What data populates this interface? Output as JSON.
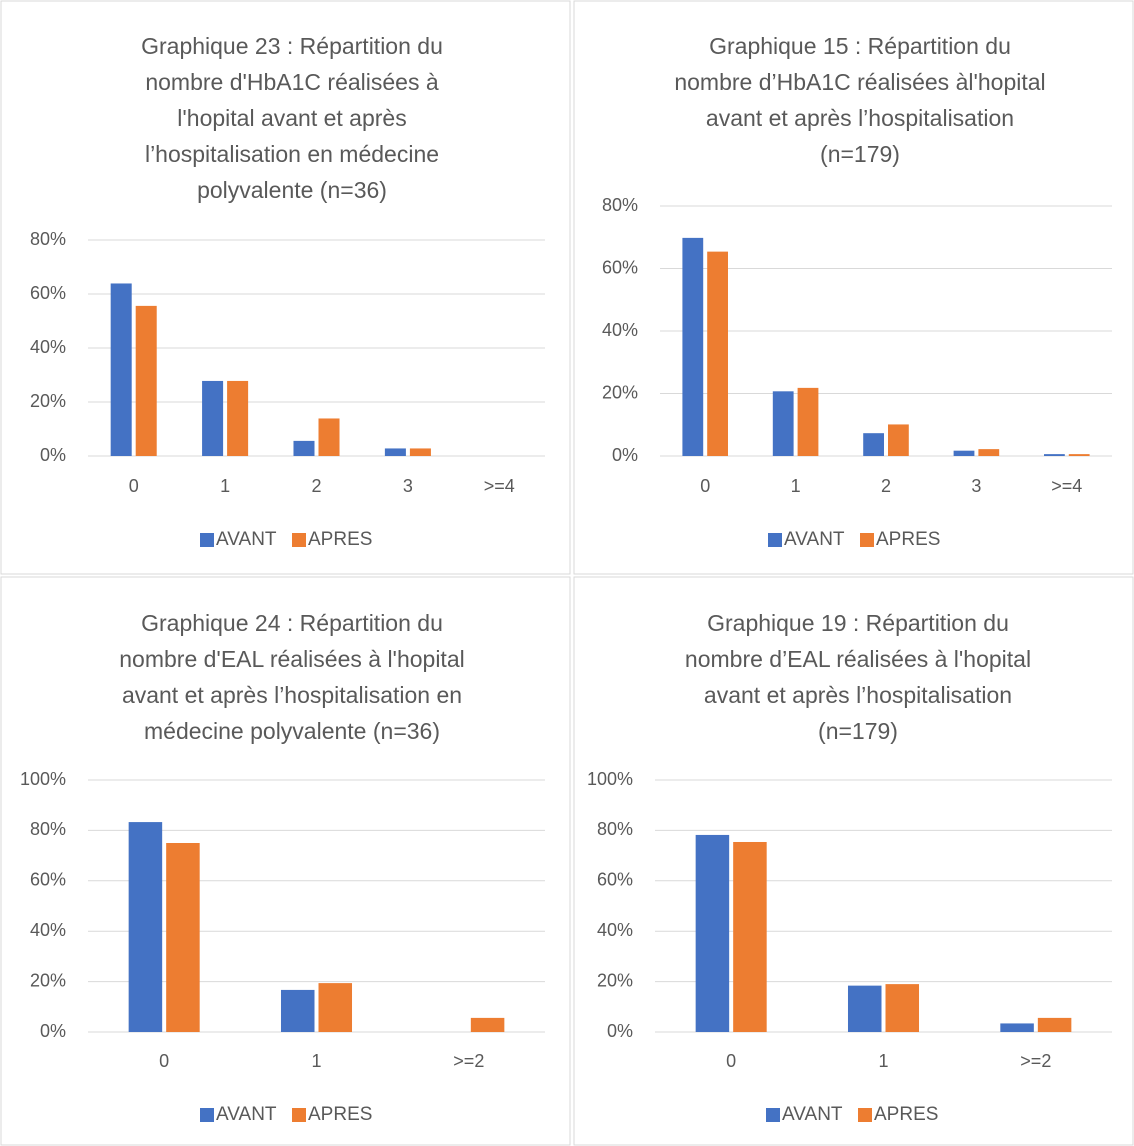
{
  "chart_data": [
    {
      "type": "bar",
      "title": [
        "Graphique 23 : Répartition du",
        "nombre d'HbA1C réalisées à",
        "l'hopital avant et après",
        "l’hospitalisation en médecine",
        "polyvalente (n=36)"
      ],
      "categories": [
        "0",
        "1",
        "2",
        "3",
        ">=4"
      ],
      "series": [
        {
          "name": "AVANT",
          "color": "#4472c4",
          "values": [
            63.9,
            27.8,
            5.6,
            2.8,
            0
          ]
        },
        {
          "name": "APRES",
          "color": "#ed7d31",
          "values": [
            55.6,
            27.8,
            13.9,
            2.8,
            0
          ]
        }
      ],
      "ylim": [
        0,
        80
      ],
      "yticks": [
        {
          "value": 0,
          "label": "0%"
        },
        {
          "value": 20,
          "label": "20%"
        },
        {
          "value": 40,
          "label": "40%"
        },
        {
          "value": 60,
          "label": "60%"
        },
        {
          "value": 80,
          "label": "80%"
        }
      ],
      "grid": true,
      "legend": "bottom"
    },
    {
      "type": "bar",
      "title": [
        "Graphique 15 : Répartition du",
        "nombre d’HbA1C réalisées àl'hopital",
        "avant et après l’hospitalisation",
        "(n=179)"
      ],
      "categories": [
        "0",
        "1",
        "2",
        "3",
        ">=4"
      ],
      "series": [
        {
          "name": "AVANT",
          "color": "#4472c4",
          "values": [
            69.8,
            20.7,
            7.3,
            1.7,
            0.6
          ]
        },
        {
          "name": "APRES",
          "color": "#ed7d31",
          "values": [
            65.4,
            21.8,
            10.1,
            2.2,
            0.6
          ]
        }
      ],
      "ylim": [
        0,
        80
      ],
      "yticks": [
        {
          "value": 0,
          "label": "0%"
        },
        {
          "value": 20,
          "label": "20%"
        },
        {
          "value": 40,
          "label": "40%"
        },
        {
          "value": 60,
          "label": "60%"
        },
        {
          "value": 80,
          "label": "80%"
        }
      ],
      "grid": true,
      "legend": "bottom"
    },
    {
      "type": "bar",
      "title": [
        "Graphique 24 : Répartition du",
        "nombre d'EAL réalisées à l'hopital",
        "avant et après l’hospitalisation en",
        "médecine polyvalente (n=36)"
      ],
      "categories": [
        "0",
        "1",
        ">=2"
      ],
      "series": [
        {
          "name": "AVANT",
          "color": "#4472c4",
          "values": [
            83.3,
            16.7,
            0
          ]
        },
        {
          "name": "APRES",
          "color": "#ed7d31",
          "values": [
            75,
            19.4,
            5.6
          ]
        }
      ],
      "ylim": [
        0,
        100
      ],
      "yticks": [
        {
          "value": 0,
          "label": "0%"
        },
        {
          "value": 20,
          "label": "20%"
        },
        {
          "value": 40,
          "label": "40%"
        },
        {
          "value": 60,
          "label": "60%"
        },
        {
          "value": 80,
          "label": "80%"
        },
        {
          "value": 100,
          "label": "100%"
        }
      ],
      "grid": true,
      "legend": "bottom"
    },
    {
      "type": "bar",
      "title": [
        "Graphique 19 : Répartition du",
        "nombre d’EAL réalisées à l'hopital",
        "avant et après l’hospitalisation",
        "(n=179)"
      ],
      "categories": [
        "0",
        "1",
        ">=2"
      ],
      "series": [
        {
          "name": "AVANT",
          "color": "#4472c4",
          "values": [
            78.2,
            18.4,
            3.4
          ]
        },
        {
          "name": "APRES",
          "color": "#ed7d31",
          "values": [
            75.4,
            19,
            5.6
          ]
        }
      ],
      "ylim": [
        0,
        100
      ],
      "yticks": [
        {
          "value": 0,
          "label": "0%"
        },
        {
          "value": 20,
          "label": "20%"
        },
        {
          "value": 40,
          "label": "40%"
        },
        {
          "value": 60,
          "label": "60%"
        },
        {
          "value": 80,
          "label": "80%"
        },
        {
          "value": 100,
          "label": "100%"
        }
      ],
      "grid": true,
      "legend": "bottom"
    }
  ]
}
